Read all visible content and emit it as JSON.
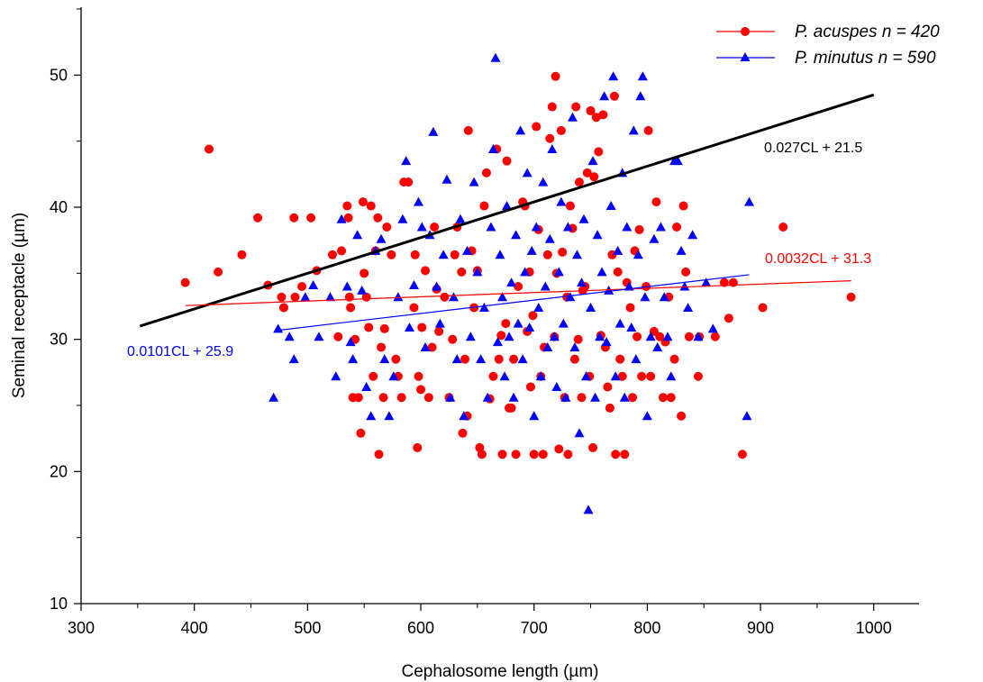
{
  "chart_data": {
    "type": "scatter",
    "title": "",
    "xlabel": "Cephalosome length (µm)",
    "ylabel": "Seminal receptacle (µm)",
    "xlim": [
      300,
      1040
    ],
    "ylim": [
      10,
      55
    ],
    "xticks": [
      300,
      400,
      500,
      600,
      700,
      800,
      900,
      1000
    ],
    "yticks": [
      10,
      20,
      30,
      40,
      50
    ],
    "grid": false,
    "legend_position": "top-right",
    "series": [
      {
        "name": "P. acuspes n = 420",
        "color": "#ff0000",
        "marker": "circle",
        "points": [
          [
            392,
            34.3
          ],
          [
            413,
            44.4
          ],
          [
            421,
            35.1
          ],
          [
            442,
            36.4
          ],
          [
            456,
            39.2
          ],
          [
            465,
            34.1
          ],
          [
            477,
            33.2
          ],
          [
            479,
            32.4
          ],
          [
            488,
            39.2
          ],
          [
            489,
            33.2
          ],
          [
            495,
            34
          ],
          [
            503,
            39.2
          ],
          [
            508,
            35.2
          ],
          [
            522,
            36.4
          ],
          [
            527,
            30.2
          ],
          [
            530,
            36.7
          ],
          [
            535,
            40.1
          ],
          [
            536,
            39.2
          ],
          [
            537,
            33.2
          ],
          [
            538,
            32.4
          ],
          [
            540,
            25.6
          ],
          [
            542,
            30
          ],
          [
            545,
            25.6
          ],
          [
            547,
            22.9
          ],
          [
            549,
            40.4
          ],
          [
            550,
            35
          ],
          [
            552,
            33.2
          ],
          [
            554,
            30.9
          ],
          [
            556,
            40.1
          ],
          [
            558,
            27.2
          ],
          [
            560,
            36.7
          ],
          [
            562,
            39.2
          ],
          [
            563,
            21.3
          ],
          [
            565,
            29.4
          ],
          [
            567,
            25.6
          ],
          [
            568,
            30.8
          ],
          [
            570,
            38.5
          ],
          [
            574,
            36.4
          ],
          [
            578,
            28.5
          ],
          [
            580,
            27.2
          ],
          [
            583,
            25.6
          ],
          [
            585,
            41.9
          ],
          [
            589,
            41.9
          ],
          [
            594,
            32.4
          ],
          [
            595,
            36.4
          ],
          [
            597,
            21.8
          ],
          [
            598,
            27.2
          ],
          [
            600,
            26.2
          ],
          [
            601,
            30.9
          ],
          [
            604,
            35.2
          ],
          [
            607,
            25.6
          ],
          [
            610,
            29.4
          ],
          [
            612,
            38.5
          ],
          [
            614,
            33.8
          ],
          [
            616,
            30.6
          ],
          [
            621,
            33.2
          ],
          [
            625,
            25.6
          ],
          [
            628,
            30
          ],
          [
            630,
            36.4
          ],
          [
            632,
            38.5
          ],
          [
            636,
            35.1
          ],
          [
            637,
            22.9
          ],
          [
            639,
            28.5
          ],
          [
            641,
            24.2
          ],
          [
            642,
            45.8
          ],
          [
            645,
            36.7
          ],
          [
            647,
            32.4
          ],
          [
            650,
            35.2
          ],
          [
            652,
            21.8
          ],
          [
            654,
            21.3
          ],
          [
            656,
            40.1
          ],
          [
            658,
            42.6
          ],
          [
            661,
            25.5
          ],
          [
            664,
            27.2
          ],
          [
            667,
            44.4
          ],
          [
            669,
            28.5
          ],
          [
            671,
            30.3
          ],
          [
            672,
            21.3
          ],
          [
            675,
            31.2
          ],
          [
            676,
            43.5
          ],
          [
            678,
            24.8
          ],
          [
            680,
            24.8
          ],
          [
            682,
            28.5
          ],
          [
            684,
            21.3
          ],
          [
            686,
            34
          ],
          [
            690,
            40.4
          ],
          [
            692,
            40.1
          ],
          [
            694,
            30.6
          ],
          [
            696,
            35.1
          ],
          [
            697,
            26.4
          ],
          [
            699,
            31.8
          ],
          [
            700,
            21.3
          ],
          [
            702,
            46.1
          ],
          [
            704,
            38.3
          ],
          [
            706,
            27.2
          ],
          [
            708,
            21.3
          ],
          [
            709,
            29.4
          ],
          [
            712,
            36.4
          ],
          [
            714,
            45.2
          ],
          [
            716,
            47.6
          ],
          [
            718,
            30.2
          ],
          [
            719,
            49.9
          ],
          [
            720,
            35
          ],
          [
            722,
            21.7
          ],
          [
            724,
            45.8
          ],
          [
            725,
            36.6
          ],
          [
            727,
            25.6
          ],
          [
            729,
            33.2
          ],
          [
            730,
            21.3
          ],
          [
            732,
            40.1
          ],
          [
            734,
            38.4
          ],
          [
            736,
            28.5
          ],
          [
            737,
            47.6
          ],
          [
            739,
            30
          ],
          [
            740,
            41.9
          ],
          [
            742,
            25.6
          ],
          [
            743,
            33.7
          ],
          [
            745,
            34
          ],
          [
            747,
            42.6
          ],
          [
            749,
            27.2
          ],
          [
            750,
            47.3
          ],
          [
            752,
            21.8
          ],
          [
            753,
            42.3
          ],
          [
            755,
            46.8
          ],
          [
            757,
            44.2
          ],
          [
            759,
            30.3
          ],
          [
            761,
            47
          ],
          [
            763,
            29.4
          ],
          [
            765,
            26.4
          ],
          [
            767,
            24.8
          ],
          [
            769,
            36.4
          ],
          [
            771,
            48.4
          ],
          [
            772,
            21.3
          ],
          [
            774,
            35.1
          ],
          [
            776,
            28.5
          ],
          [
            778,
            27.2
          ],
          [
            780,
            21.3
          ],
          [
            782,
            34.3
          ],
          [
            785,
            32.4
          ],
          [
            787,
            25.6
          ],
          [
            789,
            36.7
          ],
          [
            791,
            30.2
          ],
          [
            793,
            38.3
          ],
          [
            795,
            27.2
          ],
          [
            799,
            34
          ],
          [
            801,
            45.8
          ],
          [
            803,
            27.2
          ],
          [
            806,
            30.6
          ],
          [
            808,
            40.4
          ],
          [
            811,
            30.2
          ],
          [
            814,
            25.6
          ],
          [
            816,
            29.8
          ],
          [
            819,
            33.2
          ],
          [
            821,
            25.6
          ],
          [
            824,
            28.5
          ],
          [
            826,
            38.5
          ],
          [
            830,
            24.2
          ],
          [
            832,
            40.1
          ],
          [
            834,
            35.1
          ],
          [
            837,
            30.2
          ],
          [
            845,
            27.2
          ],
          [
            846,
            30.2
          ],
          [
            860,
            30.2
          ],
          [
            868,
            34.3
          ],
          [
            872,
            31.6
          ],
          [
            876,
            34.3
          ],
          [
            884,
            21.3
          ],
          [
            902,
            32.4
          ],
          [
            920,
            38.5
          ],
          [
            980,
            33.2
          ]
        ]
      },
      {
        "name": "P. minutus n = 590",
        "color": "#0000ff",
        "marker": "triangle",
        "points": [
          [
            470,
            25.6
          ],
          [
            474,
            30.8
          ],
          [
            484,
            30.2
          ],
          [
            488,
            28.5
          ],
          [
            498,
            33.2
          ],
          [
            505,
            34.1
          ],
          [
            510,
            30.2
          ],
          [
            520,
            33.2
          ],
          [
            525,
            27.2
          ],
          [
            530,
            39.1
          ],
          [
            535,
            34
          ],
          [
            538,
            29.8
          ],
          [
            540,
            28.5
          ],
          [
            544,
            37.9
          ],
          [
            548,
            33.7
          ],
          [
            552,
            26.4
          ],
          [
            556,
            24.2
          ],
          [
            560,
            36.7
          ],
          [
            565,
            37.6
          ],
          [
            568,
            28.5
          ],
          [
            572,
            24.2
          ],
          [
            576,
            27.2
          ],
          [
            580,
            33.2
          ],
          [
            584,
            39.1
          ],
          [
            587,
            43.5
          ],
          [
            590,
            30.9
          ],
          [
            594,
            34.1
          ],
          [
            598,
            40.4
          ],
          [
            601,
            38.5
          ],
          [
            604,
            29.4
          ],
          [
            608,
            37.9
          ],
          [
            611,
            45.7
          ],
          [
            614,
            34
          ],
          [
            617,
            31.2
          ],
          [
            620,
            36.4
          ],
          [
            623,
            42.1
          ],
          [
            626,
            25.6
          ],
          [
            629,
            33.2
          ],
          [
            632,
            28.5
          ],
          [
            635,
            39.1
          ],
          [
            638,
            24.2
          ],
          [
            641,
            36.7
          ],
          [
            644,
            30.2
          ],
          [
            647,
            41.9
          ],
          [
            650,
            35.1
          ],
          [
            653,
            28.5
          ],
          [
            656,
            32.4
          ],
          [
            659,
            25.6
          ],
          [
            662,
            38.5
          ],
          [
            664,
            44.4
          ],
          [
            666,
            51.3
          ],
          [
            668,
            29.8
          ],
          [
            670,
            36.4
          ],
          [
            672,
            33.2
          ],
          [
            674,
            27.2
          ],
          [
            676,
            40.1
          ],
          [
            678,
            30.2
          ],
          [
            680,
            34.3
          ],
          [
            682,
            25.6
          ],
          [
            684,
            37.9
          ],
          [
            686,
            31.2
          ],
          [
            688,
            45.8
          ],
          [
            690,
            28.5
          ],
          [
            692,
            35.1
          ],
          [
            694,
            42.6
          ],
          [
            696,
            30.9
          ],
          [
            698,
            36.7
          ],
          [
            700,
            24.2
          ],
          [
            702,
            38.5
          ],
          [
            704,
            32.4
          ],
          [
            706,
            27.2
          ],
          [
            708,
            41.9
          ],
          [
            710,
            34
          ],
          [
            712,
            29.4
          ],
          [
            714,
            37.6
          ],
          [
            716,
            44.4
          ],
          [
            718,
            30.2
          ],
          [
            720,
            26.4
          ],
          [
            722,
            35.1
          ],
          [
            724,
            40.4
          ],
          [
            726,
            31.2
          ],
          [
            728,
            25.6
          ],
          [
            730,
            38.5
          ],
          [
            732,
            33.2
          ],
          [
            734,
            46.8
          ],
          [
            736,
            29.4
          ],
          [
            738,
            36.4
          ],
          [
            740,
            22.9
          ],
          [
            742,
            34.3
          ],
          [
            744,
            39.1
          ],
          [
            746,
            27.2
          ],
          [
            748,
            17.1
          ],
          [
            750,
            32.4
          ],
          [
            752,
            43.5
          ],
          [
            754,
            25.6
          ],
          [
            756,
            37.9
          ],
          [
            758,
            30.2
          ],
          [
            760,
            35.1
          ],
          [
            762,
            48.4
          ],
          [
            764,
            29.8
          ],
          [
            766,
            33.7
          ],
          [
            768,
            40.1
          ],
          [
            770,
            49.9
          ],
          [
            772,
            27.2
          ],
          [
            774,
            36.7
          ],
          [
            776,
            31.2
          ],
          [
            778,
            42.6
          ],
          [
            780,
            25.6
          ],
          [
            782,
            38.5
          ],
          [
            784,
            34
          ],
          [
            786,
            30.9
          ],
          [
            788,
            45.8
          ],
          [
            790,
            28.5
          ],
          [
            792,
            36.4
          ],
          [
            794,
            48.4
          ],
          [
            796,
            49.9
          ],
          [
            798,
            33.2
          ],
          [
            800,
            24.2
          ],
          [
            803,
            30.2
          ],
          [
            806,
            37.6
          ],
          [
            809,
            29.4
          ],
          [
            812,
            38.5
          ],
          [
            815,
            33.2
          ],
          [
            818,
            30.2
          ],
          [
            821,
            27.2
          ],
          [
            824,
            43.5
          ],
          [
            827,
            43.5
          ],
          [
            830,
            36.7
          ],
          [
            833,
            34
          ],
          [
            836,
            32.4
          ],
          [
            840,
            37.9
          ],
          [
            845,
            30.2
          ],
          [
            852,
            34.3
          ],
          [
            858,
            30.8
          ],
          [
            888,
            24.2
          ],
          [
            890,
            40.4
          ]
        ]
      }
    ],
    "regression_lines": [
      {
        "label": "0.027CL + 21.5",
        "slope": 0.027,
        "intercept": 21.5,
        "x_range": [
          352,
          1000
        ],
        "color": "#000000"
      },
      {
        "label": "0.0032CL + 31.3",
        "slope": 0.0032,
        "intercept": 31.3,
        "x_range": [
          392,
          980
        ],
        "color": "#ff0000"
      },
      {
        "label": "0.0101CL + 25.9",
        "slope": 0.0101,
        "intercept": 25.9,
        "x_range": [
          473,
          890
        ],
        "color": "#0000ff"
      }
    ]
  }
}
